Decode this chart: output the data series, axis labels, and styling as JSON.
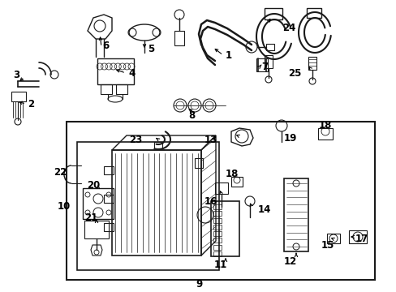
{
  "bg": "#ffffff",
  "lc": "#1a1a1a",
  "figsize": [
    4.89,
    3.6
  ],
  "dpi": 100,
  "xlim": [
    0,
    489
  ],
  "ylim": [
    0,
    360
  ]
}
